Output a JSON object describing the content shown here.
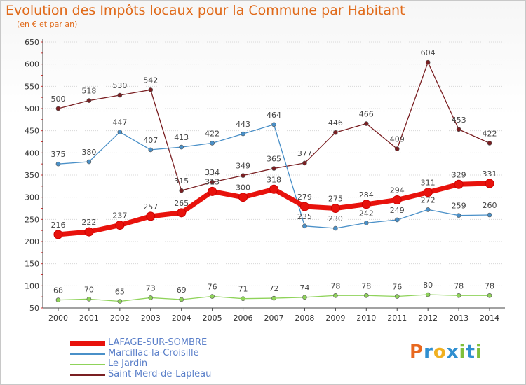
{
  "title": "Evolution des Impôts locaux pour la Commune par Habitant",
  "subtitle": "(en € et par an)",
  "logo": {
    "text": "Proxiti",
    "letters": [
      "P",
      "r",
      "o",
      "x",
      "i",
      "t",
      "i"
    ],
    "colors": [
      "#e8681e",
      "#2f8fd0",
      "#f0b020",
      "#2f8fd0",
      "#7fbf3a",
      "#2f8fd0",
      "#7fbf3a"
    ]
  },
  "chart_data": {
    "type": "line",
    "title": "Evolution des Impôts locaux pour la Commune par Habitant",
    "subtitle": "(en € et par an)",
    "x": [
      "2000",
      "2001",
      "2002",
      "2003",
      "2004",
      "2005",
      "2006",
      "2007",
      "2008",
      "2009",
      "2010",
      "2011",
      "2012",
      "2013",
      "2014"
    ],
    "ylim": [
      50,
      650
    ],
    "yticks": [
      50,
      100,
      150,
      200,
      250,
      300,
      350,
      400,
      450,
      500,
      550,
      600,
      650
    ],
    "grid": true,
    "legend_position": "bottom-left",
    "series": [
      {
        "name": "LAFAGE-SUR-SOMBRE",
        "color": "#e8120c",
        "values": [
          216,
          222,
          237,
          257,
          265,
          313,
          300,
          318,
          279,
          275,
          284,
          294,
          311,
          329,
          331
        ],
        "labels": [
          "216",
          "222",
          "237",
          "257",
          "265",
          "313",
          "300",
          "318",
          "279",
          "275",
          "284",
          "294",
          "311",
          "329",
          "331"
        ]
      },
      {
        "name": "Marcillac-la-Croisille",
        "color": "#4a90c8",
        "values": [
          375,
          380,
          447,
          407,
          413,
          422,
          443,
          464,
          235,
          230,
          242,
          249,
          272,
          259,
          260
        ],
        "labels": [
          "375",
          "380",
          "447",
          "407",
          "413",
          "422",
          "443",
          "464",
          "235",
          "230",
          "242",
          "249",
          "272",
          "259",
          "260"
        ]
      },
      {
        "name": "Le Jardin",
        "color": "#8fd35a",
        "values": [
          68,
          70,
          65,
          73,
          69,
          76,
          71,
          72,
          74,
          78,
          78,
          76,
          80,
          78,
          78
        ],
        "labels": [
          "68",
          "70",
          "65",
          "73",
          "69",
          "76",
          "71",
          "72",
          "74",
          "78",
          "78",
          "76",
          "80",
          "78",
          "78"
        ]
      },
      {
        "name": "Saint-Merd-de-Lapleau",
        "color": "#7a1f22",
        "values": [
          500,
          518,
          530,
          542,
          315,
          334,
          349,
          365,
          377,
          446,
          466,
          409,
          604,
          453,
          422
        ],
        "labels": [
          "500",
          "518",
          "530",
          "542",
          "315",
          "334",
          "349",
          "365",
          "377",
          "446",
          "466",
          "409",
          "604",
          "453",
          "422"
        ]
      }
    ]
  }
}
